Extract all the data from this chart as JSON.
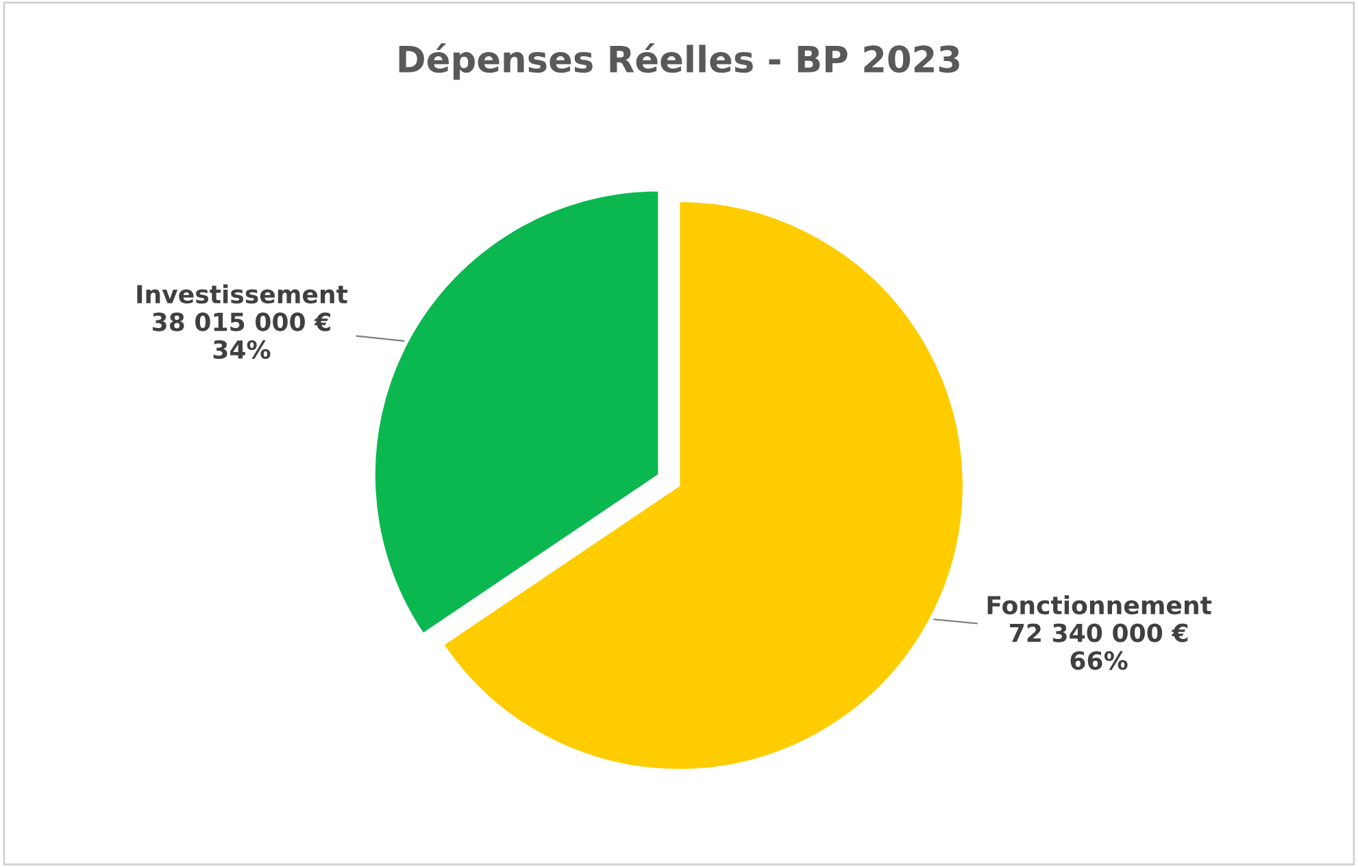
{
  "chart_data": {
    "type": "pie",
    "title": "Dépenses Réelles - BP 2023",
    "categories": [
      "Fonctionnement",
      "Investissement"
    ],
    "values": [
      72340000,
      38015000
    ],
    "value_labels": [
      "72 340 000 €\n66%",
      "38 015 000 €\n34%"
    ],
    "colors": [
      "#ffcc00",
      "#0bb84f"
    ],
    "legend": false
  }
}
